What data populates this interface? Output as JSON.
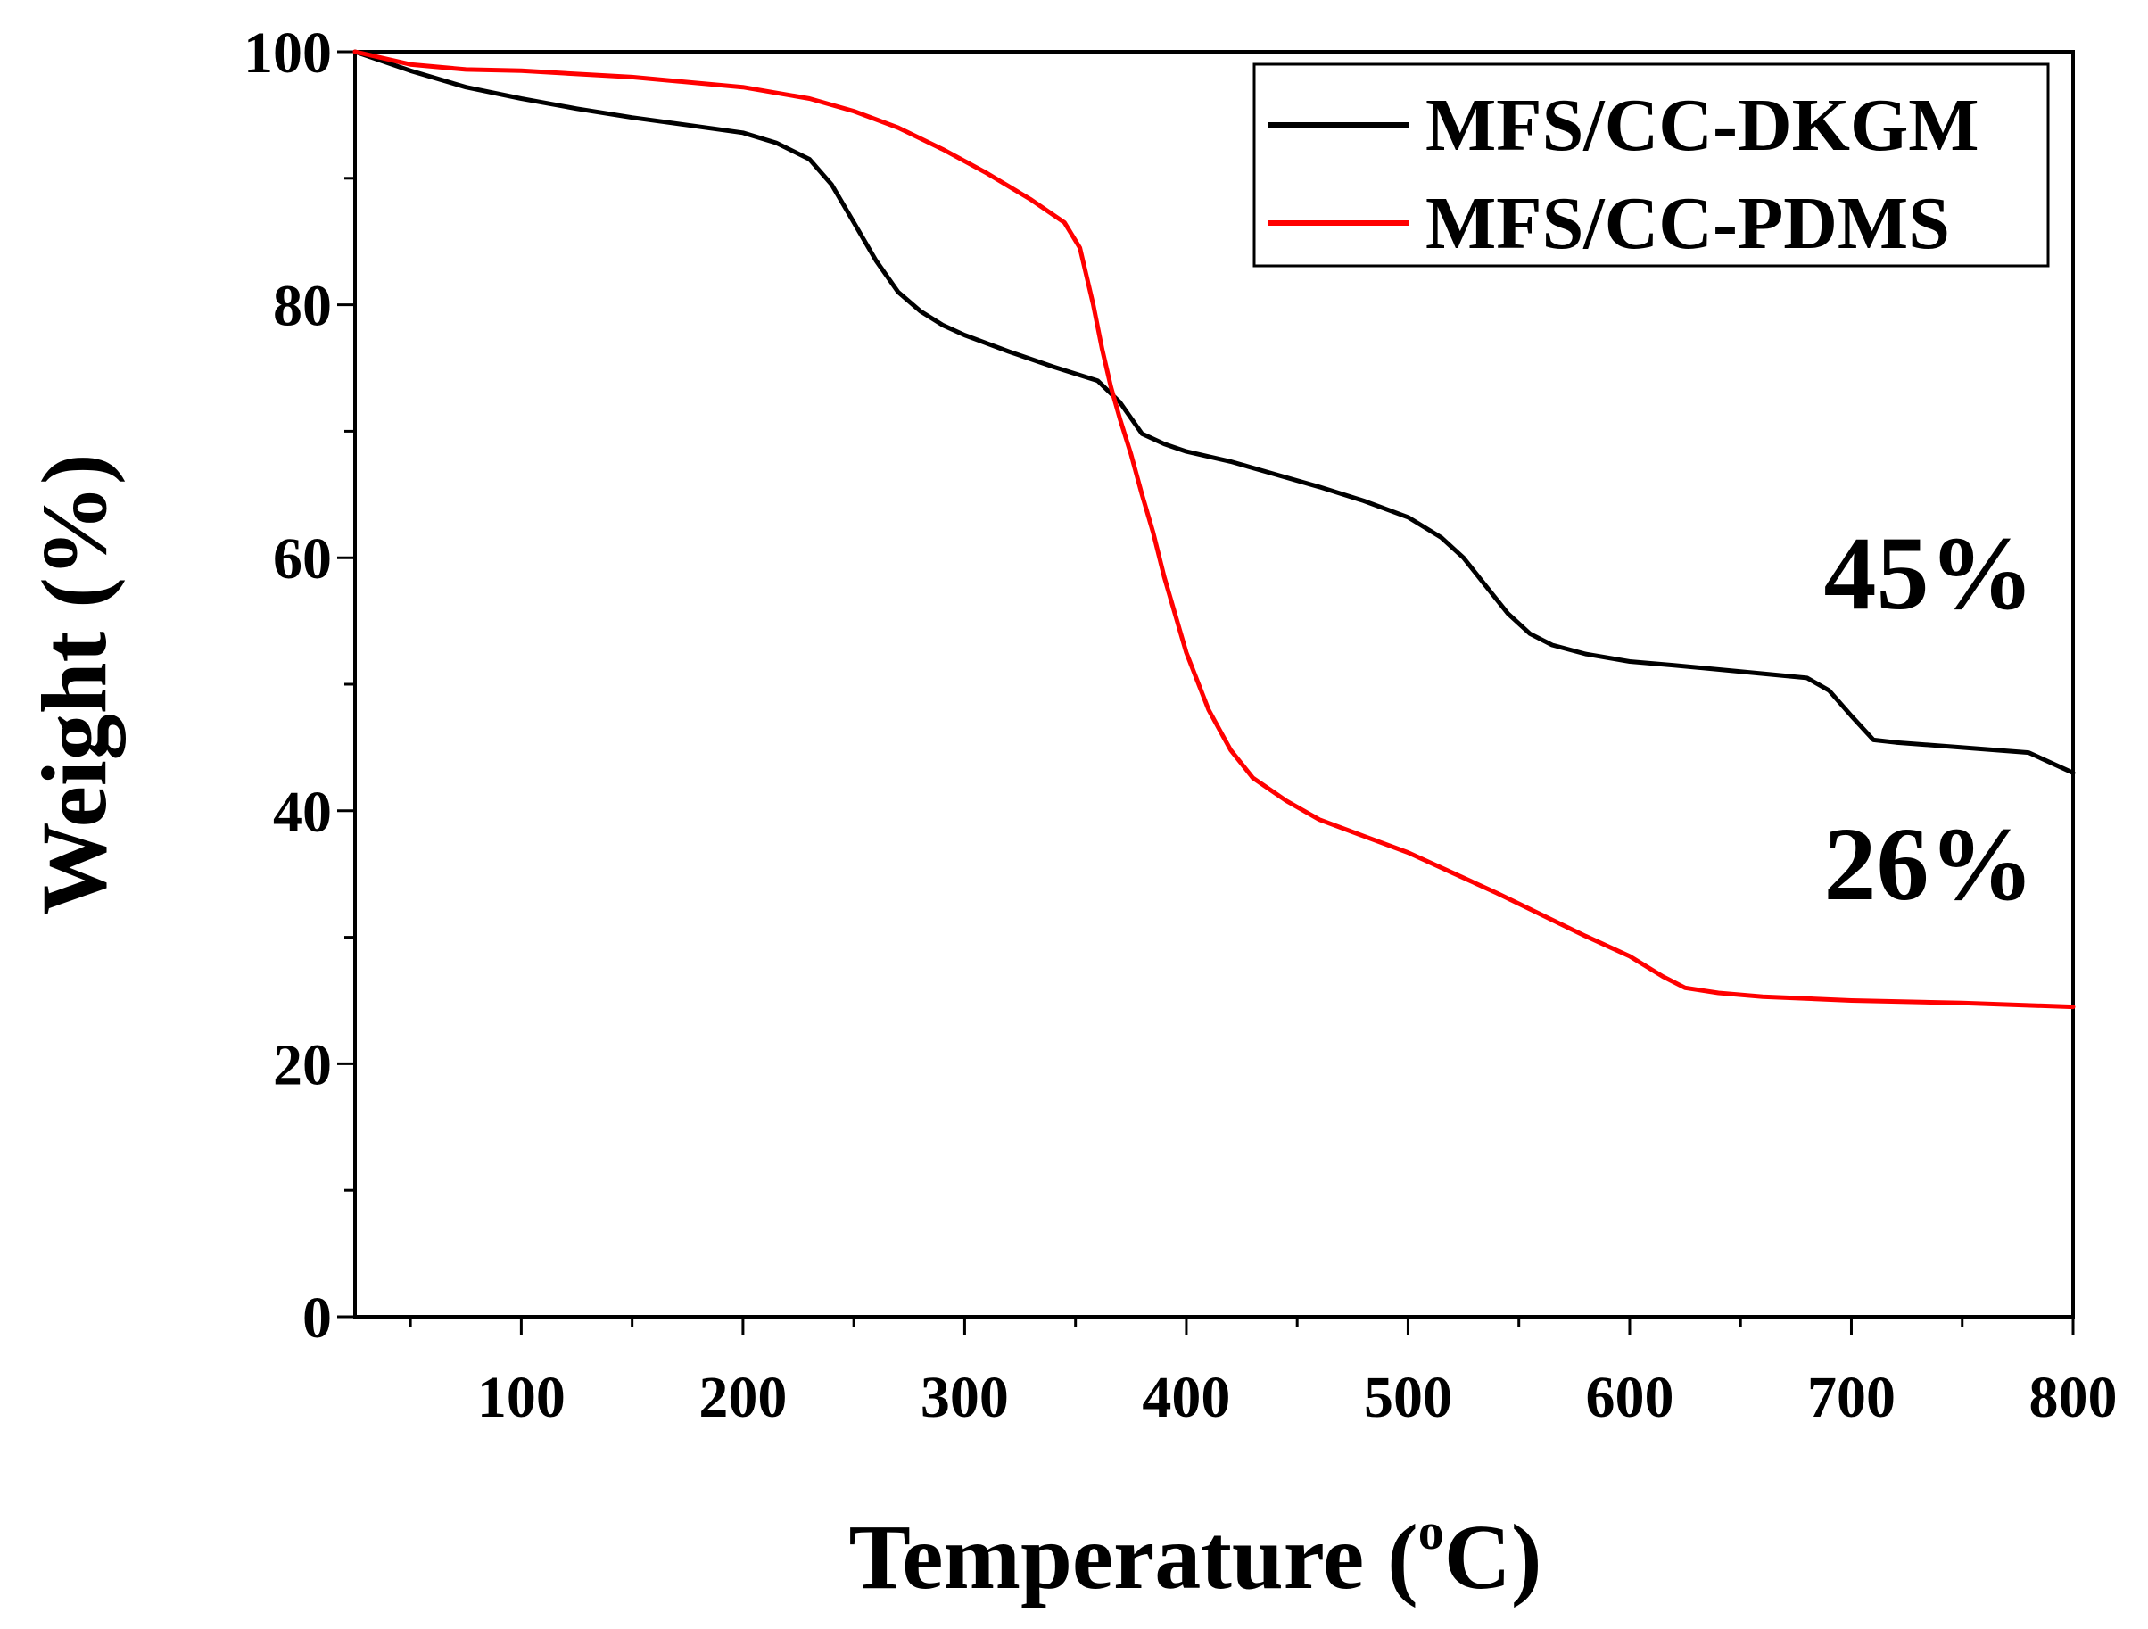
{
  "chart_data": {
    "type": "line",
    "xlabel_main": "Temperature (",
    "xlabel_degree": "o",
    "xlabel_unit": "C)",
    "ylabel": "Weight (%)",
    "xlim": [
      25,
      800
    ],
    "ylim": [
      0,
      100
    ],
    "x_ticks": [
      100,
      200,
      300,
      400,
      500,
      600,
      700,
      800
    ],
    "x_tick_labels": [
      "100",
      "200",
      "300",
      "400",
      "500",
      "600",
      "700",
      "800"
    ],
    "y_ticks": [
      0,
      20,
      40,
      60,
      80,
      100
    ],
    "y_tick_labels": [
      "0",
      "20",
      "40",
      "60",
      "80",
      "100"
    ],
    "legend_position": "top-right",
    "series": [
      {
        "name": "MFS/CC-DKGM",
        "color": "#000000",
        "x": [
          25,
          50,
          75,
          100,
          125,
          150,
          175,
          200,
          215,
          230,
          240,
          250,
          260,
          270,
          280,
          290,
          300,
          320,
          340,
          360,
          370,
          380,
          390,
          400,
          420,
          440,
          460,
          480,
          500,
          515,
          525,
          535,
          545,
          555,
          565,
          580,
          600,
          620,
          650,
          680,
          690,
          700,
          710,
          720,
          750,
          780,
          800
        ],
        "y": [
          100,
          98.5,
          97.2,
          96.3,
          95.5,
          94.8,
          94.2,
          93.6,
          92.8,
          91.5,
          89.5,
          86.5,
          83.5,
          81,
          79.5,
          78.4,
          77.6,
          76.3,
          75.1,
          74,
          72.3,
          69.8,
          69,
          68.4,
          67.6,
          66.6,
          65.6,
          64.5,
          63.2,
          61.6,
          60,
          57.8,
          55.6,
          54,
          53.1,
          52.4,
          51.8,
          51.5,
          51,
          50.5,
          49.5,
          47.5,
          45.6,
          45.4,
          45,
          44.6,
          43
        ]
      },
      {
        "name": "MFS/CC-PDMS",
        "color": "#ff0000",
        "x": [
          25,
          50,
          75,
          100,
          150,
          200,
          230,
          250,
          270,
          290,
          310,
          330,
          345,
          352,
          358,
          362,
          366,
          370,
          375,
          380,
          385,
          390,
          395,
          400,
          410,
          420,
          430,
          445,
          460,
          480,
          500,
          520,
          540,
          560,
          580,
          600,
          615,
          625,
          640,
          660,
          700,
          750,
          800
        ],
        "y": [
          100,
          99,
          98.6,
          98.5,
          98,
          97.2,
          96.3,
          95.3,
          94,
          92.3,
          90.4,
          88.3,
          86.5,
          84.5,
          80,
          76.5,
          73.5,
          71,
          68.2,
          65,
          62,
          58.5,
          55.5,
          52.5,
          48,
          44.8,
          42.6,
          40.8,
          39.3,
          38,
          36.7,
          35.1,
          33.5,
          31.8,
          30.1,
          28.5,
          26.9,
          26,
          25.6,
          25.3,
          25,
          24.8,
          24.5
        ]
      }
    ],
    "annotations": [
      {
        "text": "45%",
        "color": "#000000",
        "x": 735,
        "y": 56
      },
      {
        "text": "26%",
        "color": "#ff0000",
        "x": 735,
        "y": 33
      }
    ]
  }
}
